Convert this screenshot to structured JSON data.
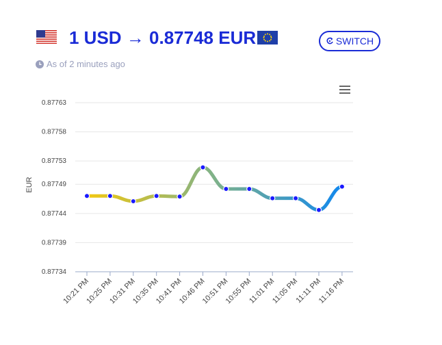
{
  "header": {
    "title": "1 USD → 0.87748 EUR",
    "switch_label": "SWITCH",
    "as_of": "As of 2 minutes ago"
  },
  "icons": {
    "from_flag": "us-flag-icon",
    "to_flag": "eu-flag-icon",
    "switch": "switch-icon",
    "clock": "clock-icon",
    "menu": "hamburger-menu-icon"
  },
  "colors": {
    "accent": "#1a2bd6",
    "subtle": "#9aa0bd",
    "marker": "#1a1aff",
    "gradient_start": "#f2c811",
    "gradient_end": "#1188ee"
  },
  "chart_data": {
    "type": "line",
    "title": "",
    "xlabel": "",
    "ylabel": "EUR",
    "categories": [
      "10:21 PM",
      "10:25 PM",
      "10:31 PM",
      "10:35 PM",
      "10:41 PM",
      "10:46 PM",
      "10:51 PM",
      "10:55 PM",
      "11:01 PM",
      "11:05 PM",
      "11:11 PM",
      "11:16 PM"
    ],
    "values": [
      0.87747,
      0.87747,
      0.877461,
      0.87747,
      0.877469,
      0.877519,
      0.877482,
      0.877482,
      0.877466,
      0.877466,
      0.877446,
      0.877486
    ],
    "yticks": [
      "0.87734",
      "0.87739",
      "0.87744",
      "0.87749",
      "0.87753",
      "0.87758",
      "0.87763"
    ],
    "ylim": [
      0.87734,
      0.87763
    ],
    "grid": true,
    "legend": "none",
    "smooth": true
  }
}
